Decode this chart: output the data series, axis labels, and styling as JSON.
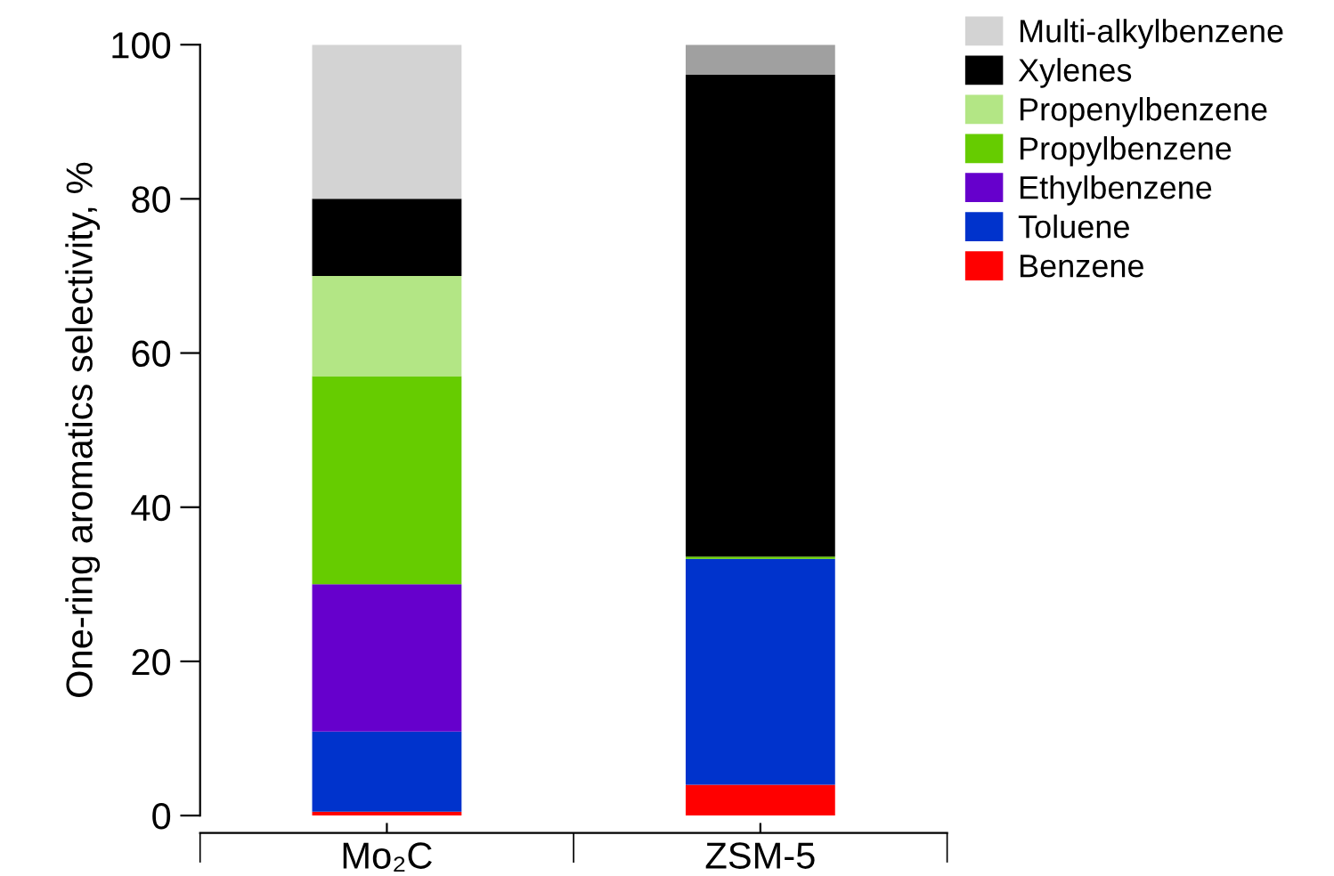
{
  "chart_data": {
    "type": "bar",
    "stacked": true,
    "ylabel": "One-ring aromatics selectivity, %",
    "categories": [
      "Mo₂C",
      "ZSM-5"
    ],
    "series": [
      {
        "name": "Benzene",
        "color": "#ff0000",
        "values": [
          0.5,
          4.0
        ]
      },
      {
        "name": "Toluene",
        "color": "#0033cc",
        "values": [
          10.4,
          29.3
        ]
      },
      {
        "name": "Ethylbenzene",
        "color": "#6600cc",
        "values": [
          19.1,
          0
        ]
      },
      {
        "name": "Propylbenzene",
        "color": "#66cc00",
        "values": [
          27,
          0.3
        ]
      },
      {
        "name": "Propenylbenzene",
        "color": "#b3e685",
        "values": [
          13,
          0
        ]
      },
      {
        "name": "Xylenes",
        "color": "#000000",
        "values": [
          10,
          62.5
        ]
      },
      {
        "name": "Multi-alkylbenzene",
        "color": "#d3d3d3",
        "colors": [
          "#d3d3d3",
          "#a0a0a0"
        ],
        "values": [
          20,
          3.9
        ]
      }
    ],
    "ylim": [
      0,
      100
    ],
    "yticks": [
      0,
      20,
      40,
      60,
      80,
      100
    ],
    "grid": false,
    "legend": "top right"
  }
}
